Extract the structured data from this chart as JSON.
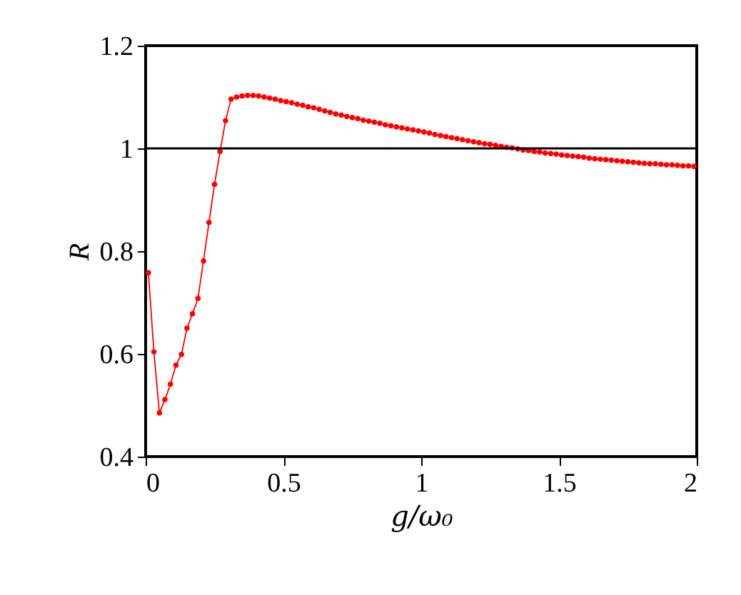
{
  "chart_data": {
    "type": "line",
    "xlabel": "g/ω₀",
    "ylabel": "R",
    "x": [
      0.01,
      0.03,
      0.05,
      0.07,
      0.09,
      0.11,
      0.13,
      0.15,
      0.17,
      0.19,
      0.21,
      0.23,
      0.25,
      0.27,
      0.29,
      0.31,
      0.33,
      0.35,
      0.37,
      0.39,
      0.41,
      0.43,
      0.45,
      0.47,
      0.49,
      0.51,
      0.53,
      0.55,
      0.57,
      0.59,
      0.61,
      0.63,
      0.65,
      0.67,
      0.69,
      0.71,
      0.73,
      0.75,
      0.77,
      0.79,
      0.81,
      0.83,
      0.85,
      0.87,
      0.89,
      0.91,
      0.93,
      0.95,
      0.97,
      0.99,
      1.01,
      1.03,
      1.05,
      1.07,
      1.09,
      1.11,
      1.13,
      1.15,
      1.17,
      1.19,
      1.21,
      1.23,
      1.25,
      1.27,
      1.29,
      1.31,
      1.33,
      1.35,
      1.37,
      1.39,
      1.41,
      1.43,
      1.45,
      1.47,
      1.49,
      1.51,
      1.53,
      1.55,
      1.57,
      1.59,
      1.61,
      1.63,
      1.65,
      1.67,
      1.69,
      1.71,
      1.73,
      1.75,
      1.77,
      1.79,
      1.81,
      1.83,
      1.85,
      1.87,
      1.89,
      1.91,
      1.93,
      1.95,
      1.97,
      1.99
    ],
    "series": [
      {
        "color": "#ff0000",
        "values": [
          0.758,
          0.604,
          0.485,
          0.511,
          0.541,
          0.578,
          0.599,
          0.65,
          0.678,
          0.708,
          0.781,
          0.856,
          0.93,
          0.994,
          1.054,
          1.096,
          1.1,
          1.102,
          1.103,
          1.103,
          1.102,
          1.1,
          1.098,
          1.096,
          1.093,
          1.091,
          1.089,
          1.086,
          1.084,
          1.081,
          1.079,
          1.076,
          1.073,
          1.07,
          1.067,
          1.065,
          1.062,
          1.06,
          1.058,
          1.055,
          1.053,
          1.051,
          1.049,
          1.046,
          1.044,
          1.042,
          1.04,
          1.038,
          1.036,
          1.034,
          1.032,
          1.03,
          1.027,
          1.025,
          1.023,
          1.021,
          1.019,
          1.017,
          1.015,
          1.013,
          1.011,
          1.009,
          1.008,
          1.006,
          1.004,
          1.002,
          1.001,
          0.999,
          0.997,
          0.996,
          0.994,
          0.993,
          0.991,
          0.99,
          0.989,
          0.987,
          0.986,
          0.985,
          0.984,
          0.983,
          0.981,
          0.98,
          0.979,
          0.978,
          0.977,
          0.976,
          0.975,
          0.974,
          0.973,
          0.972,
          0.971,
          0.97,
          0.97,
          0.969,
          0.968,
          0.968,
          0.967,
          0.966,
          0.966,
          0.965
        ]
      }
    ],
    "xlim": [
      0,
      2
    ],
    "xticks": [
      0,
      0.5,
      1,
      1.5,
      2
    ],
    "ylim": [
      0.4,
      1.2
    ],
    "yticks": [
      0.4,
      0.6,
      0.8,
      1,
      1.2
    ],
    "ref_lines": [
      {
        "axis": "y",
        "value": 1,
        "color": "#000000"
      }
    ],
    "marker": "circle",
    "line_style": "solid"
  }
}
